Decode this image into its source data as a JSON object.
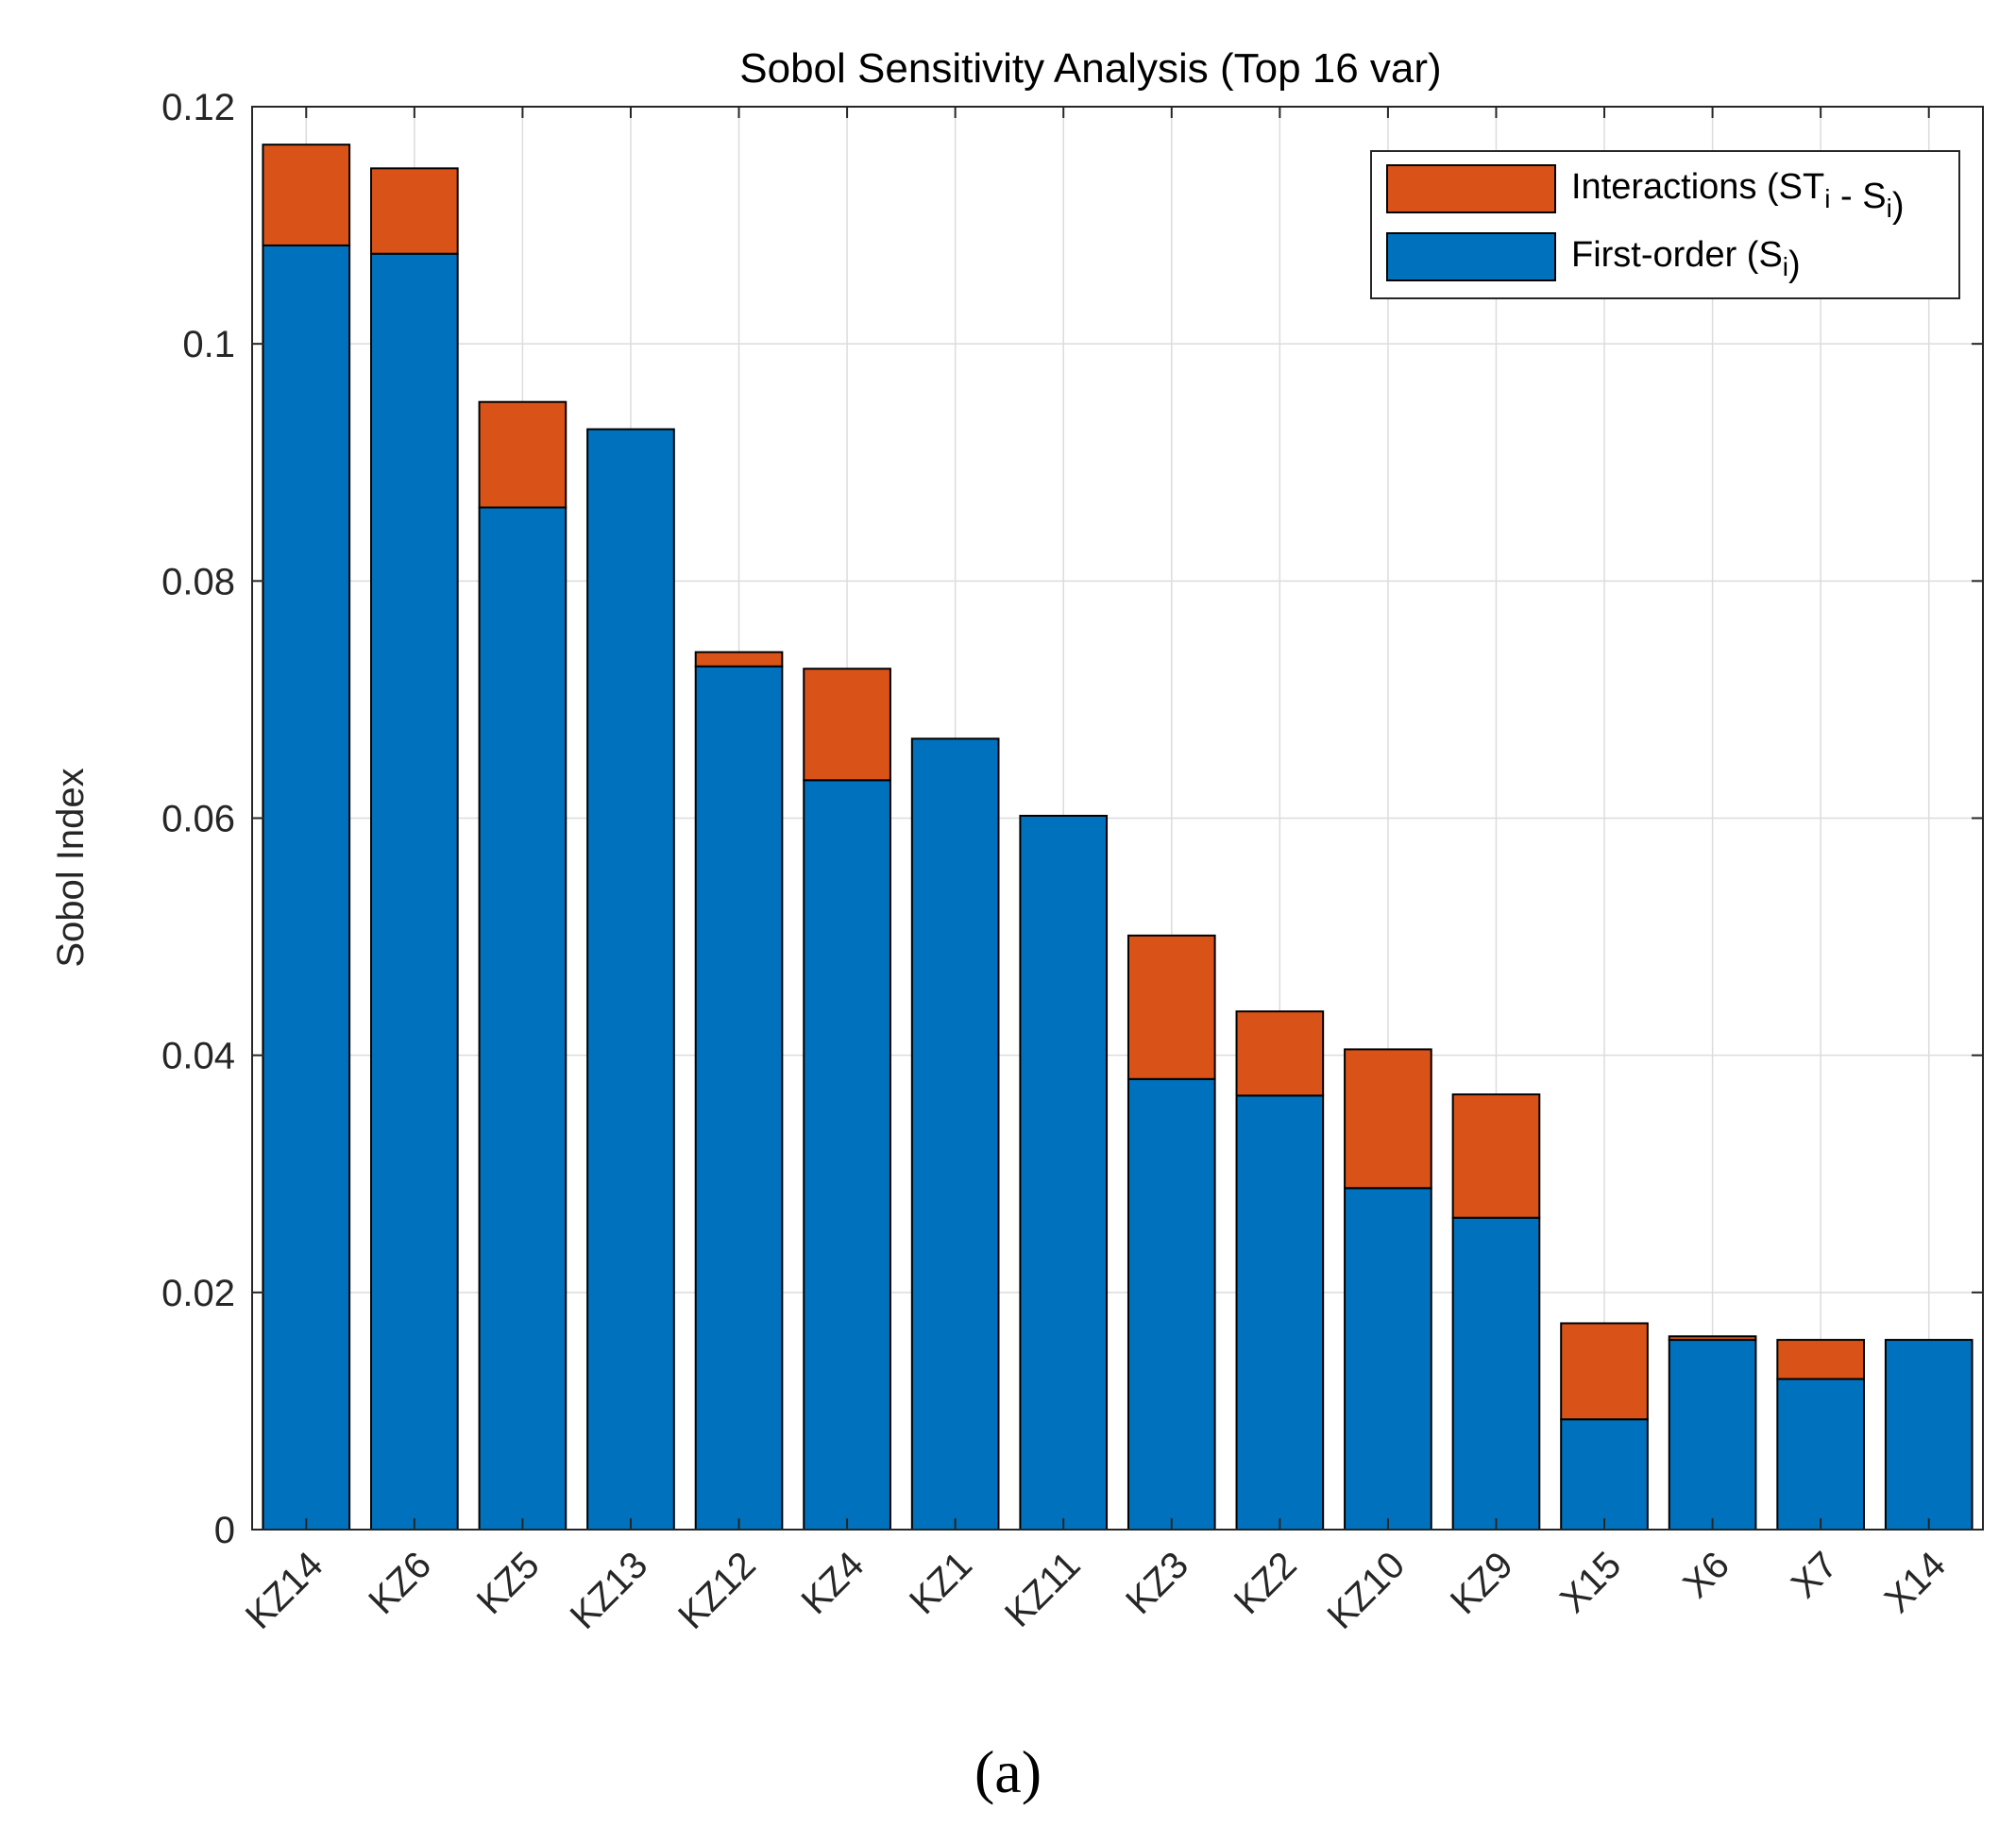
{
  "caption": "(a)",
  "chart_data": {
    "type": "bar",
    "stacked": true,
    "title": "Sobol Sensitivity Analysis (Top 16 var)",
    "xlabel": "",
    "ylabel": "Sobol Index",
    "ylim": [
      0,
      0.12
    ],
    "yticks": [
      0,
      0.02,
      0.04,
      0.06,
      0.08,
      0.1,
      0.12
    ],
    "ytick_labels": [
      "0",
      "0.02",
      "0.04",
      "0.06",
      "0.08",
      "0.1",
      "0.12"
    ],
    "grid": true,
    "legend_position": "top-right",
    "categories": [
      "KZ14",
      "KZ6",
      "KZ5",
      "KZ13",
      "KZ12",
      "KZ4",
      "KZ1",
      "KZ11",
      "KZ3",
      "KZ2",
      "KZ10",
      "KZ9",
      "X15",
      "X6",
      "X7",
      "X14"
    ],
    "series": [
      {
        "name": "First-order (S_i)",
        "legend_text": "First-order (S",
        "legend_sub": "i",
        "legend_tail": ")",
        "color": "#0072BD",
        "values": [
          0.1083,
          0.1076,
          0.0862,
          0.0928,
          0.0728,
          0.0632,
          0.0667,
          0.0602,
          0.038,
          0.0366,
          0.0288,
          0.0263,
          0.0093,
          0.016,
          0.0127,
          0.016
        ]
      },
      {
        "name": "Interactions (ST_i - S_i)",
        "legend_text": "Interactions (ST",
        "legend_sub": "i",
        "legend_mid": " - S",
        "legend_sub2": "i",
        "legend_tail": ")",
        "color": "#D95319",
        "values": [
          0.0085,
          0.0072,
          0.0089,
          0.0,
          0.0012,
          0.0094,
          0.0,
          0.0,
          0.0121,
          0.0071,
          0.0117,
          0.0104,
          0.0081,
          0.0003,
          0.0033,
          0.0
        ]
      }
    ]
  }
}
